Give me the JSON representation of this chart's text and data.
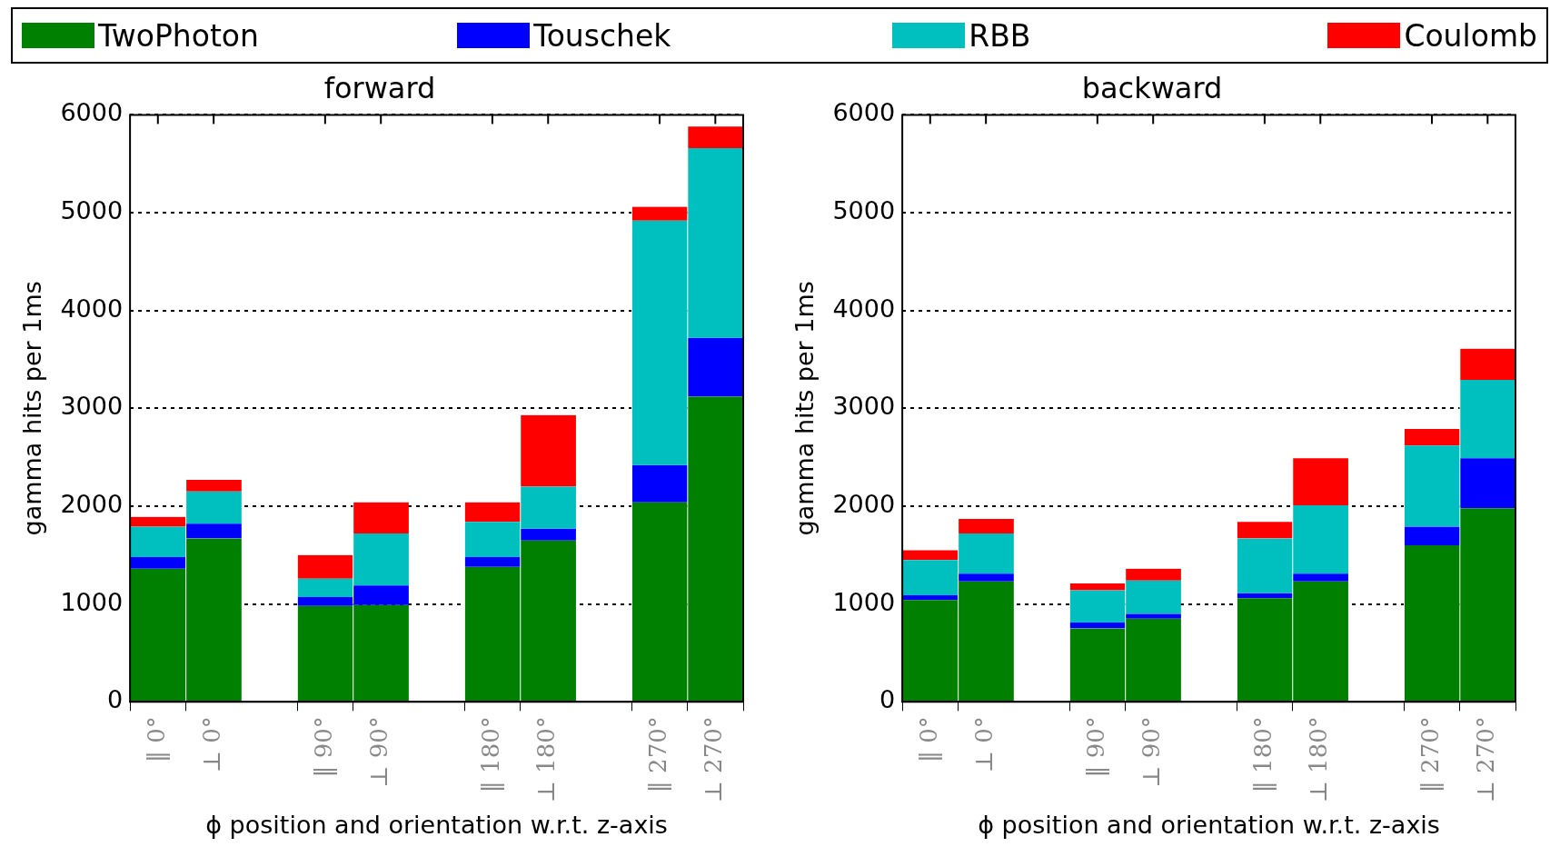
{
  "chart_data": [
    {
      "type": "bar",
      "title": "forward",
      "xlabel": "ϕ position and orientation w.r.t. z-axis",
      "ylabel": "gamma hits per 1ms",
      "stacked": true,
      "categories": [
        "‖ 0°",
        "⊥ 0°",
        null,
        "‖ 90°",
        "⊥ 90°",
        null,
        "‖ 180°",
        "⊥ 180°",
        null,
        "‖ 270°",
        "⊥ 270°"
      ],
      "series": [
        {
          "name": "TwoPhoton",
          "color": "#008000",
          "values": [
            1360,
            1670,
            null,
            980,
            990,
            null,
            1380,
            1650,
            null,
            2040,
            3120
          ]
        },
        {
          "name": "Touschek",
          "color": "#0000ff",
          "values": [
            120,
            150,
            null,
            90,
            200,
            null,
            100,
            120,
            null,
            380,
            600
          ]
        },
        {
          "name": "RBB",
          "color": "#00bfbf",
          "values": [
            310,
            330,
            null,
            190,
            530,
            null,
            360,
            430,
            null,
            2500,
            1940
          ]
        },
        {
          "name": "Coulomb",
          "color": "#ff0000",
          "values": [
            100,
            120,
            null,
            240,
            320,
            null,
            200,
            730,
            null,
            140,
            220
          ]
        }
      ],
      "ylim": [
        0,
        6000
      ],
      "yticks": [
        0,
        1000,
        2000,
        3000,
        4000,
        5000,
        6000
      ],
      "grid": "y",
      "legend": "top"
    },
    {
      "type": "bar",
      "title": "backward",
      "xlabel": "ϕ position and orientation w.r.t. z-axis",
      "ylabel": "gamma hits per 1ms",
      "stacked": true,
      "categories": [
        "‖ 0°",
        "⊥ 0°",
        null,
        "‖ 90°",
        "⊥ 90°",
        null,
        "‖ 180°",
        "⊥ 180°",
        null,
        "‖ 270°",
        "⊥ 270°"
      ],
      "series": [
        {
          "color": "#008000",
          "values": [
            1040,
            1230,
            null,
            750,
            850,
            null,
            1060,
            1230,
            null,
            1600,
            1980
          ]
        },
        {
          "color": "#0000ff",
          "values": [
            50,
            80,
            null,
            60,
            50,
            null,
            50,
            80,
            null,
            190,
            510
          ]
        },
        {
          "color": "#00bfbf",
          "values": [
            360,
            410,
            null,
            330,
            340,
            null,
            560,
            700,
            null,
            830,
            800
          ]
        },
        {
          "color": "#ff0000",
          "values": [
            100,
            150,
            null,
            70,
            120,
            null,
            170,
            480,
            null,
            170,
            320
          ]
        }
      ],
      "ylim": [
        0,
        6000
      ],
      "yticks": [
        0,
        1000,
        2000,
        3000,
        4000,
        5000,
        6000
      ],
      "grid": "y"
    }
  ]
}
